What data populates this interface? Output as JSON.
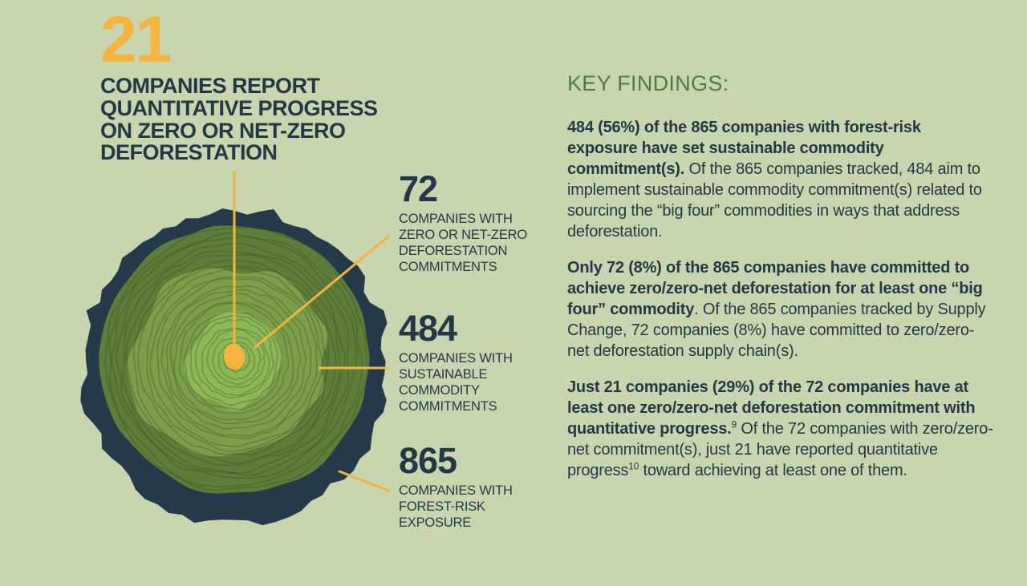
{
  "colors": {
    "background": "#C9D5AF",
    "accent_yellow": "#F3B440",
    "dark_navy": "#233844",
    "heading_green": "#507C3B",
    "bark": "#253A49",
    "wood_dark": "#5E7D3B",
    "wood_mid": "#7C9E4B",
    "wood_light": "#8CB755",
    "ring_line": "#2F4418"
  },
  "headline": {
    "number": "21",
    "text": "COMPANIES REPORT\nQUANTITATIVE PROGRESS\nON ZERO OR NET-ZERO\nDEFORESTATION"
  },
  "callouts": [
    {
      "number": "72",
      "label": "COMPANIES WITH\nZERO OR NET-ZERO\nDEFORESTATION\nCOMMITMENTS"
    },
    {
      "number": "484",
      "label": "COMPANIES WITH\nSUSTAINABLE\nCOMMODITY\nCOMMITMENTS"
    },
    {
      "number": "865",
      "label": "COMPANIES WITH\nFOREST-RISK\nEXPOSURE"
    }
  ],
  "key_findings": {
    "heading": "KEY FINDINGS:",
    "paragraphs": [
      {
        "bold": "484 (56%) of the 865 companies with forest-risk exposure have set sustainable commodity commitment(s).",
        "sup1": "",
        "rest1": " Of the 865 companies tracked, 484 aim to implement sustainable commodity commitment(s) related to sourcing the “big four” commodities in ways that address deforestation.",
        "sup2": "",
        "rest2": ""
      },
      {
        "bold": "Only 72 (8%) of the 865 companies have committed to achieve zero/zero-net deforestation for at least one “big four” commodity",
        "sup1": "",
        "rest1": ". Of the 865 companies tracked by Supply Change, 72 companies (8%) have committed to zero/zero-net deforestation supply chain(s).",
        "sup2": "",
        "rest2": ""
      },
      {
        "bold": "Just 21 companies (29%) of the 72 companies have at least one zero/zero-net deforestation commitment with quantitative progress.",
        "sup1": "9",
        "rest1": " Of the 72 companies with zero/zero-net commitment(s), just 21 have reported quantitative progress",
        "sup2": "10",
        "rest2": " toward achieving at least one of them."
      }
    ]
  },
  "chart_data": {
    "type": "table",
    "categories": [
      "COMPANIES WITH FOREST-RISK EXPOSURE",
      "COMPANIES WITH SUSTAINABLE COMMODITY COMMITMENTS",
      "COMPANIES WITH ZERO OR NET-ZERO DEFORESTATION COMMITMENTS",
      "COMPANIES REPORT QUANTITATIVE PROGRESS ON ZERO OR NET-ZERO DEFORESTATION"
    ],
    "values": [
      865,
      484,
      72,
      21
    ]
  }
}
